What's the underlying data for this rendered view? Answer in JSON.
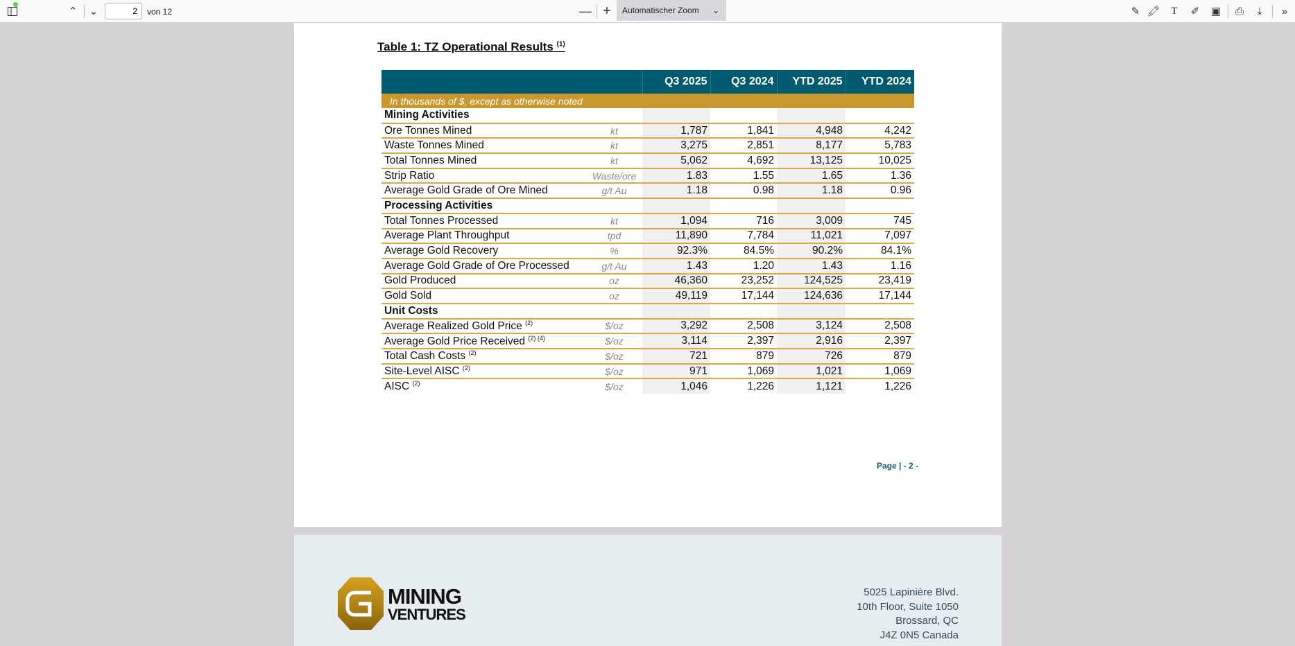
{
  "toolbar": {
    "page_number": "2",
    "page_of": "von 12",
    "zoom_label": "Automatischer Zoom"
  },
  "document": {
    "title": "Table 1: TZ Operational Results",
    "title_note": "(1)",
    "table": {
      "headers": [
        "Q3 2025",
        "Q3 2024",
        "YTD 2025",
        "YTD 2024"
      ],
      "note": "In thousands of $, except as otherwise noted",
      "rows": [
        {
          "type": "section",
          "label": "Mining Activities"
        },
        {
          "type": "data",
          "label": "Ore Tonnes Mined",
          "sup": "",
          "unit": "kt",
          "values": [
            "1,787",
            "1,841",
            "4,948",
            "4,242"
          ]
        },
        {
          "type": "data",
          "label": "Waste Tonnes Mined",
          "sup": "",
          "unit": "kt",
          "values": [
            "3,275",
            "2,851",
            "8,177",
            "5,783"
          ]
        },
        {
          "type": "data",
          "label": "Total Tonnes Mined",
          "sup": "",
          "unit": "kt",
          "values": [
            "5,062",
            "4,692",
            "13,125",
            "10,025"
          ]
        },
        {
          "type": "data",
          "label": "Strip Ratio",
          "sup": "",
          "unit": "Waste/ore",
          "values": [
            "1.83",
            "1.55",
            "1.65",
            "1.36"
          ]
        },
        {
          "type": "data",
          "label": "Average Gold Grade of Ore Mined",
          "sup": "",
          "unit": "g/t Au",
          "values": [
            "1.18",
            "0.98",
            "1.18",
            "0.96"
          ]
        },
        {
          "type": "section",
          "label": "Processing Activities"
        },
        {
          "type": "data",
          "label": "Total Tonnes Processed",
          "sup": "",
          "unit": "kt",
          "values": [
            "1,094",
            "716",
            "3,009",
            "745"
          ]
        },
        {
          "type": "data",
          "label": "Average Plant Throughput",
          "sup": "",
          "unit": "tpd",
          "values": [
            "11,890",
            "7,784",
            "11,021",
            "7,097"
          ]
        },
        {
          "type": "data",
          "label": "Average Gold Recovery",
          "sup": "",
          "unit": "%",
          "values": [
            "92.3%",
            "84.5%",
            "90.2%",
            "84.1%"
          ]
        },
        {
          "type": "data",
          "label": "Average Gold Grade of Ore Processed",
          "sup": "",
          "unit": "g/t Au",
          "values": [
            "1.43",
            "1.20",
            "1.43",
            "1.16"
          ]
        },
        {
          "type": "data",
          "label": "Gold Produced",
          "sup": "",
          "unit": "oz",
          "values": [
            "46,360",
            "23,252",
            "124,525",
            "23,419"
          ]
        },
        {
          "type": "data",
          "label": "Gold Sold",
          "sup": "",
          "unit": "oz",
          "values": [
            "49,119",
            "17,144",
            "124,636",
            "17,144"
          ]
        },
        {
          "type": "section",
          "label": "Unit Costs"
        },
        {
          "type": "data",
          "label": "Average Realized Gold Price",
          "sup": "(2)",
          "unit": "$/oz",
          "values": [
            "3,292",
            "2,508",
            "3,124",
            "2,508"
          ]
        },
        {
          "type": "data",
          "label": "Average Gold Price Received",
          "sup": "(2) (4)",
          "unit": "$/oz",
          "values": [
            "3,114",
            "2,397",
            "2,916",
            "2,397"
          ]
        },
        {
          "type": "data",
          "label": "Total Cash Costs",
          "sup": "(2)",
          "unit": "$/oz",
          "values": [
            "721",
            "879",
            "726",
            "879"
          ]
        },
        {
          "type": "data",
          "label": "Site-Level AISC",
          "sup": "(2)",
          "unit": "$/oz",
          "values": [
            "971",
            "1,069",
            "1,021",
            "1,069"
          ]
        },
        {
          "type": "data",
          "label": "AISC",
          "sup": "(2)",
          "unit": "$/oz",
          "values": [
            "1,046",
            "1,226",
            "1,121",
            "1,226"
          ],
          "last": true
        }
      ]
    },
    "page_footer": "Page | - 2 -"
  },
  "page2": {
    "logo": {
      "line1": "MINING",
      "line2": "VENTURES"
    },
    "address": [
      "5025 Lapinière Blvd.",
      "10th Floor, Suite 1050",
      "Brossard, QC",
      "J4Z 0N5 Canada"
    ]
  },
  "colors": {
    "header": "#005a70",
    "gold": "#c8982f"
  }
}
